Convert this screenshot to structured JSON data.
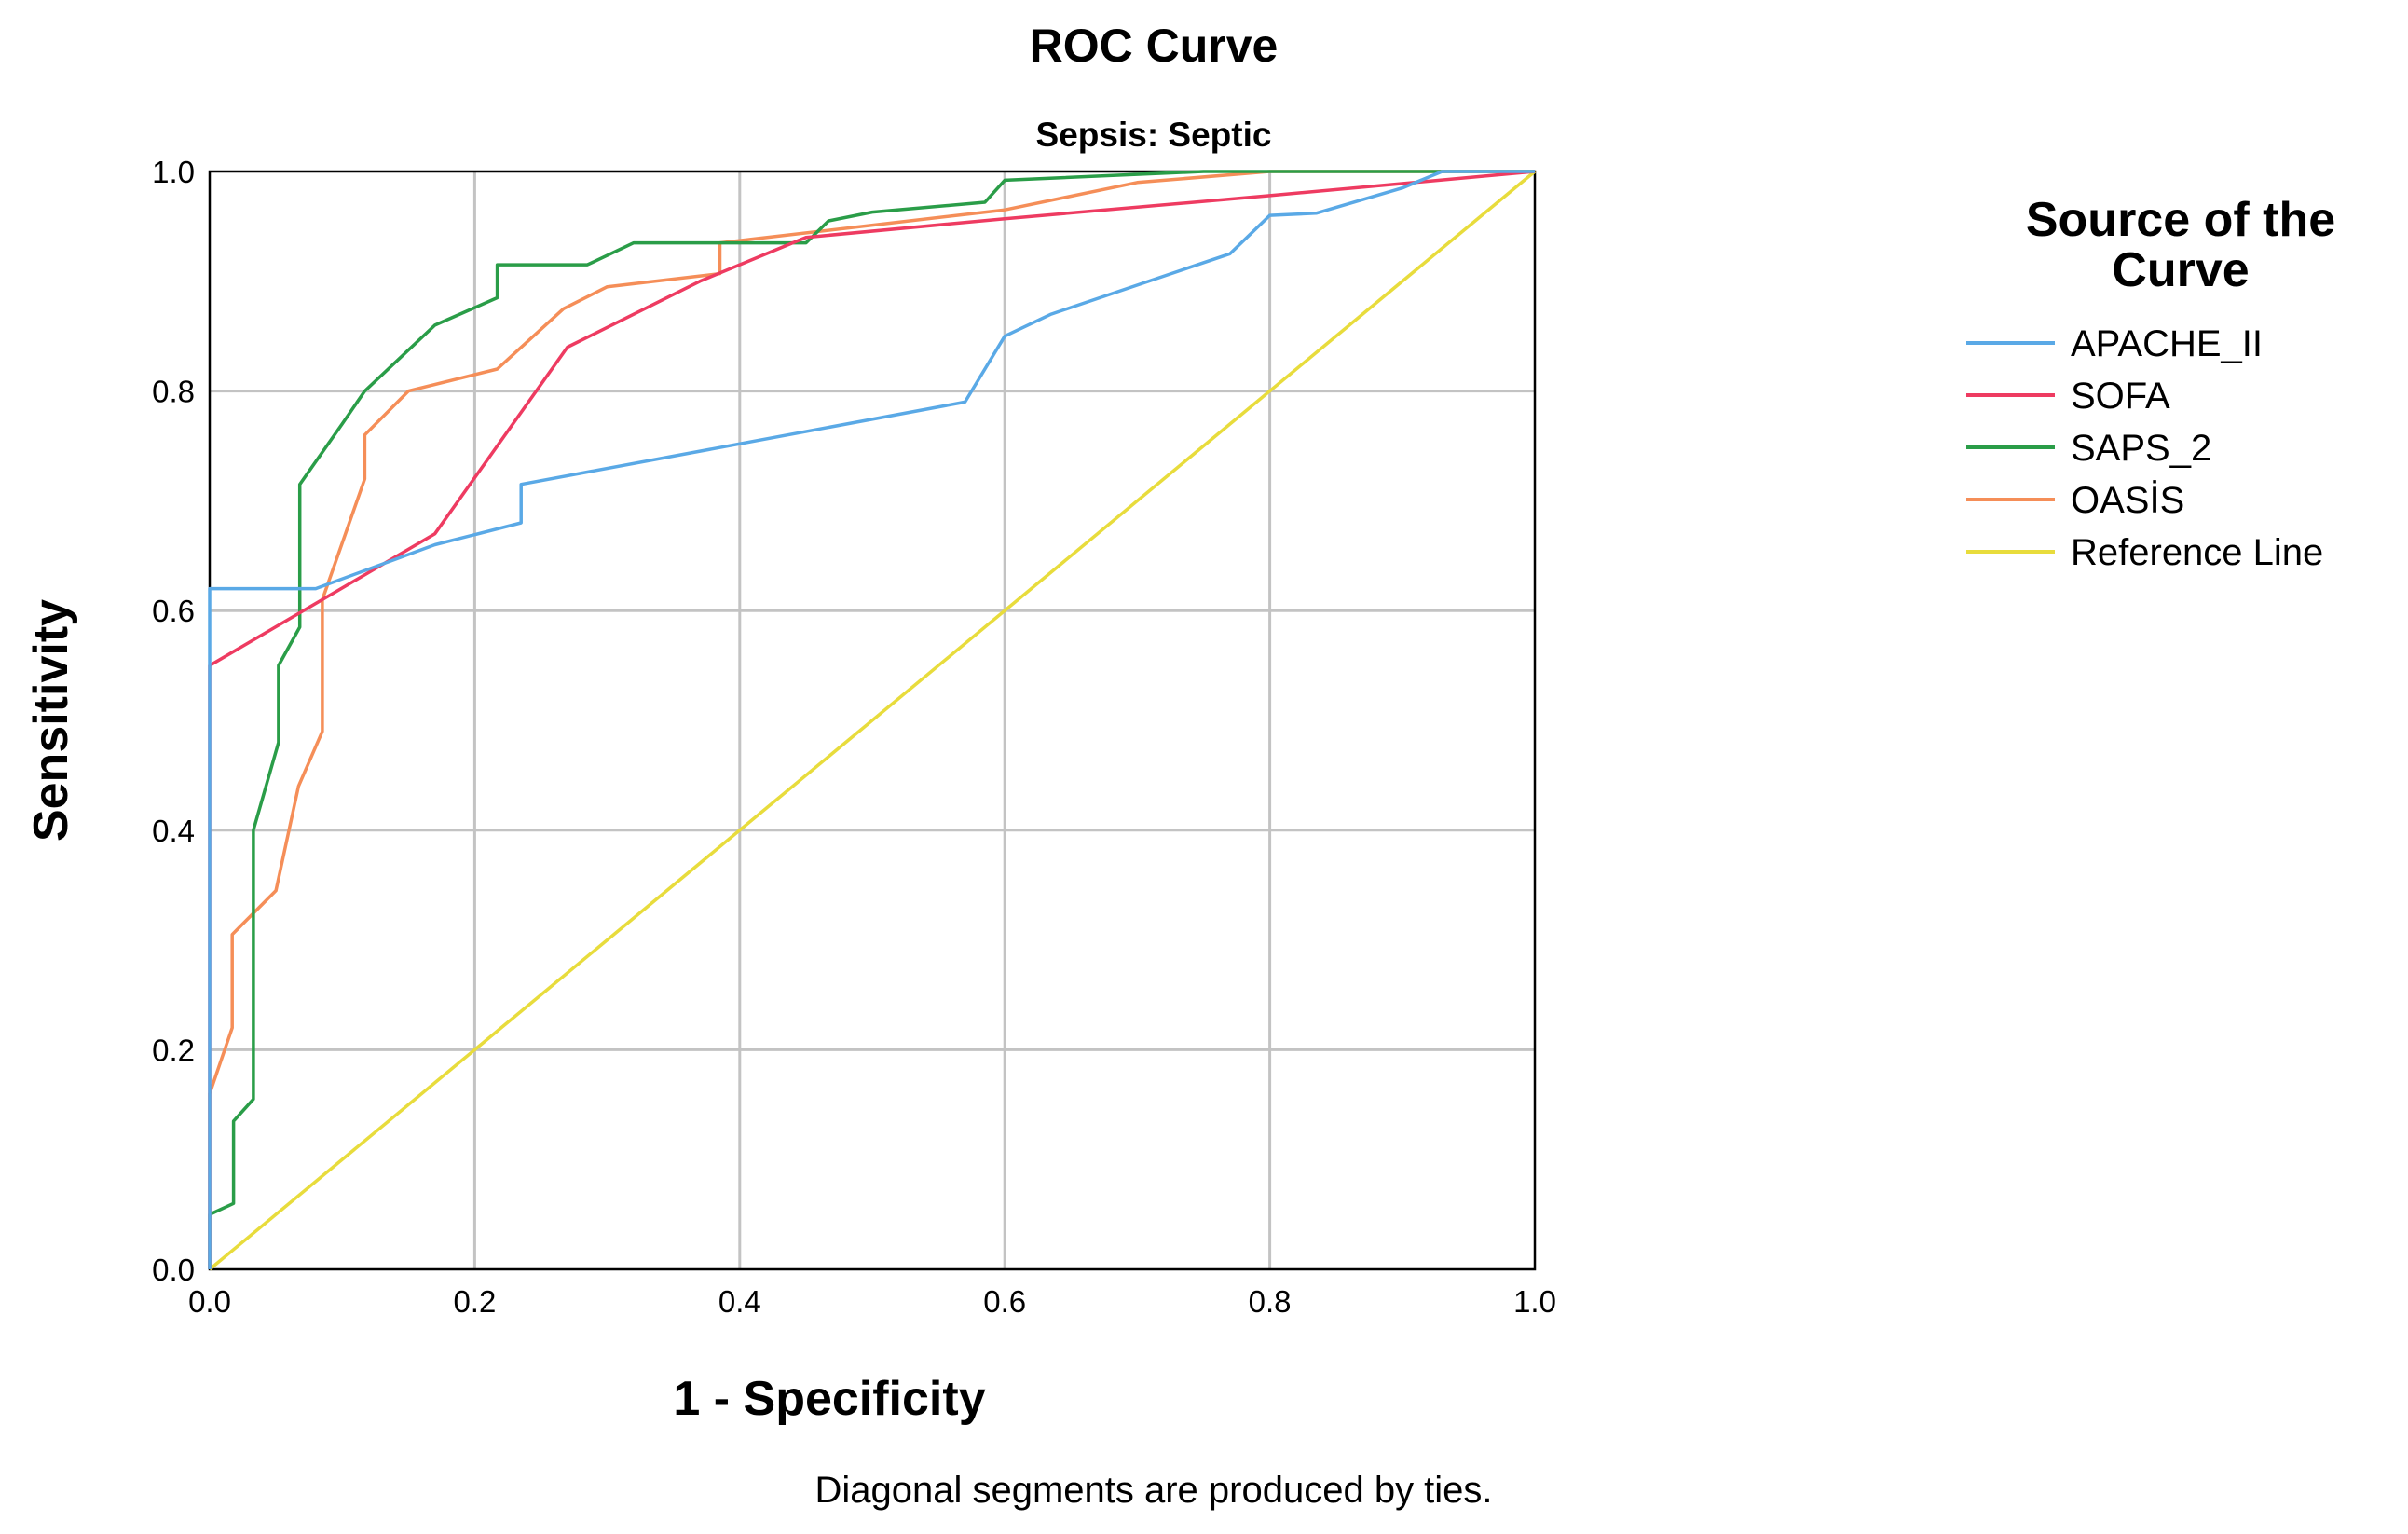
{
  "chart_data": {
    "type": "line",
    "title": "ROC Curve",
    "subtitle": "Sepsis: Septic",
    "xlabel": "1 - Specificity",
    "ylabel": "Sensitivity",
    "xlim": [
      0,
      1
    ],
    "ylim": [
      0,
      1
    ],
    "grid": true,
    "xticks": [
      "0.0",
      "0.2",
      "0.4",
      "0.6",
      "0.8",
      "1.0"
    ],
    "yticks": [
      "0.0",
      "0.2",
      "0.4",
      "0.6",
      "0.8",
      "1.0"
    ],
    "note": "Diagonal segments are produced by ties.",
    "legend": {
      "title_line1": "Source of the",
      "title_line2": "Curve",
      "placement": "right"
    },
    "series": [
      {
        "name": "APACHE_II",
        "color": "#5aa9e6",
        "points": [
          [
            0,
            0
          ],
          [
            0,
            0.55
          ],
          [
            0,
            0.62
          ],
          [
            0.08,
            0.62
          ],
          [
            0.17,
            0.66
          ],
          [
            0.235,
            0.68
          ],
          [
            0.235,
            0.715
          ],
          [
            0.57,
            0.79
          ],
          [
            0.6,
            0.85
          ],
          [
            0.635,
            0.87
          ],
          [
            0.77,
            0.925
          ],
          [
            0.8,
            0.96
          ],
          [
            0.835,
            0.962
          ],
          [
            0.9,
            0.985
          ],
          [
            0.93,
            1.0
          ],
          [
            1,
            1
          ]
        ]
      },
      {
        "name": "SOFA",
        "color": "#ee3b61",
        "points": [
          [
            0,
            0
          ],
          [
            0,
            0.55
          ],
          [
            0.085,
            0.61
          ],
          [
            0.17,
            0.67
          ],
          [
            0.27,
            0.84
          ],
          [
            0.37,
            0.9
          ],
          [
            0.45,
            0.94
          ],
          [
            0.6,
            0.957
          ],
          [
            0.8,
            0.978
          ],
          [
            1,
            1
          ]
        ]
      },
      {
        "name": "SAPS_2",
        "color": "#2a9d48",
        "points": [
          [
            0,
            0
          ],
          [
            0,
            0.05
          ],
          [
            0.018,
            0.06
          ],
          [
            0.018,
            0.135
          ],
          [
            0.033,
            0.155
          ],
          [
            0.033,
            0.4
          ],
          [
            0.052,
            0.48
          ],
          [
            0.052,
            0.55
          ],
          [
            0.068,
            0.585
          ],
          [
            0.068,
            0.715
          ],
          [
            0.1,
            0.77
          ],
          [
            0.117,
            0.8
          ],
          [
            0.17,
            0.86
          ],
          [
            0.217,
            0.885
          ],
          [
            0.217,
            0.915
          ],
          [
            0.285,
            0.915
          ],
          [
            0.32,
            0.935
          ],
          [
            0.45,
            0.935
          ],
          [
            0.467,
            0.955
          ],
          [
            0.5,
            0.963
          ],
          [
            0.585,
            0.972
          ],
          [
            0.6,
            0.992
          ],
          [
            0.75,
            1.0
          ],
          [
            1,
            1
          ]
        ]
      },
      {
        "name": "OASİS",
        "color": "#f58e58",
        "points": [
          [
            0,
            0
          ],
          [
            0,
            0.16
          ],
          [
            0.017,
            0.22
          ],
          [
            0.017,
            0.305
          ],
          [
            0.05,
            0.345
          ],
          [
            0.067,
            0.44
          ],
          [
            0.085,
            0.49
          ],
          [
            0.085,
            0.61
          ],
          [
            0.117,
            0.72
          ],
          [
            0.117,
            0.76
          ],
          [
            0.15,
            0.8
          ],
          [
            0.217,
            0.82
          ],
          [
            0.267,
            0.875
          ],
          [
            0.3,
            0.895
          ],
          [
            0.385,
            0.907
          ],
          [
            0.385,
            0.935
          ],
          [
            0.6,
            0.965
          ],
          [
            0.7,
            0.99
          ],
          [
            0.8,
            1.0
          ],
          [
            1,
            1
          ]
        ]
      },
      {
        "name": "Reference Line",
        "color": "#e8dc3c",
        "points": [
          [
            0,
            0
          ],
          [
            1,
            1
          ]
        ]
      }
    ]
  }
}
